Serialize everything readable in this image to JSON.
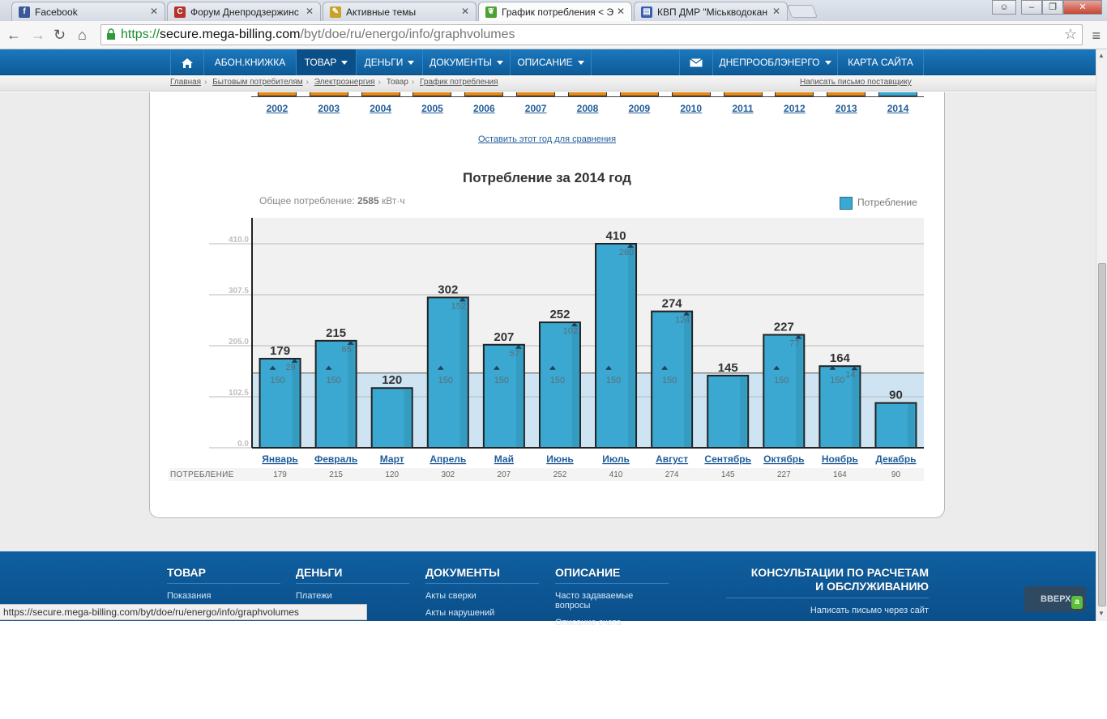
{
  "browser": {
    "tabs": [
      {
        "label": "Facebook",
        "icon": "facebook-icon",
        "color": "#3b5998",
        "glyph": "f"
      },
      {
        "label": "Форум Днепродзержинс",
        "icon": "forum-icon",
        "color": "#b5332b",
        "glyph": "C"
      },
      {
        "label": "Активные темы",
        "icon": "topics-icon",
        "color": "#c9a227",
        "glyph": "✎"
      },
      {
        "label": "График потребления < Э",
        "icon": "leaf-icon",
        "color": "#4aa232",
        "glyph": "❦"
      },
      {
        "label": "КВП ДМР \"Міськводокан",
        "icon": "building-icon",
        "color": "#3a5fb0",
        "glyph": "▤"
      }
    ],
    "url": {
      "scheme": "https://",
      "host": "secure.mega-billing.com",
      "path": "/byt/doe/ru/energo/info/graphvolumes"
    },
    "status_url": "https://secure.mega-billing.com/byt/doe/ru/energo/info/graphvolumes"
  },
  "nav": {
    "items": [
      "АБОН.КНИЖКА",
      "ТОВАР",
      "ДЕНЬГИ",
      "ДОКУМЕНТЫ",
      "ОПИСАНИЕ"
    ],
    "right_items": [
      "ДНЕПРООБЛЭНЕРГО",
      "КАРТА САЙТА"
    ]
  },
  "breadcrumb": {
    "items": [
      "Главная",
      "Бытовым потребителям",
      "Электроэнергия",
      "Товар",
      "График потребления"
    ],
    "write_supplier": "Написать письмо поставщику"
  },
  "years": [
    "2002",
    "2003",
    "2004",
    "2005",
    "2006",
    "2007",
    "2008",
    "2009",
    "2010",
    "2011",
    "2012",
    "2013",
    "2014"
  ],
  "compare_link": "Оставить этот год для сравнения",
  "chart": {
    "title": "Потребление за 2014 год",
    "total_label": "Общее потребление:",
    "total_value": "2585",
    "total_unit": "кВт·ч",
    "legend": "Потребление",
    "row_label": "ПОТРЕБЛЕНИЕ"
  },
  "chart_data": {
    "type": "bar",
    "categories": [
      "Январь",
      "Февраль",
      "Март",
      "Апрель",
      "Май",
      "Июнь",
      "Июль",
      "Август",
      "Сентябрь",
      "Октябрь",
      "Ноябрь",
      "Декабрь"
    ],
    "series": [
      {
        "name": "Потребление",
        "values": [
          179,
          215,
          120,
          302,
          207,
          252,
          410,
          274,
          145,
          227,
          164,
          90
        ]
      }
    ],
    "base_values": [
      150,
      150,
      null,
      150,
      150,
      150,
      150,
      150,
      null,
      150,
      150,
      null
    ],
    "excess_values": [
      29,
      65,
      null,
      152,
      57,
      102,
      260,
      124,
      null,
      77,
      14,
      null
    ],
    "threshold": 150,
    "yticks": [
      "410.0",
      "307.5",
      "205.0",
      "102.5",
      "0.0"
    ],
    "ylim": [
      0,
      410
    ],
    "bar_color": "#3aa8d0",
    "band_color": "#cfe4f2"
  },
  "footer": {
    "columns": [
      {
        "title": "ТОВАР",
        "links": [
          "Показания"
        ]
      },
      {
        "title": "ДЕНЬГИ",
        "links": [
          "Платежи"
        ]
      },
      {
        "title": "ДОКУМЕНТЫ",
        "links": [
          "Акты сверки",
          "Акты нарушений"
        ]
      },
      {
        "title": "ОПИСАНИЕ",
        "links": [
          "Часто задаваемые вопросы",
          "Описание счета"
        ]
      }
    ],
    "consult_title_1": "КОНСУЛЬТАЦИИ ПО РАСЧЕТАМ",
    "consult_title_2": "И ОБСЛУЖИВАНИЮ",
    "consult_link": "Написать письмо через сайт",
    "to_top": "ВВЕРХ"
  }
}
